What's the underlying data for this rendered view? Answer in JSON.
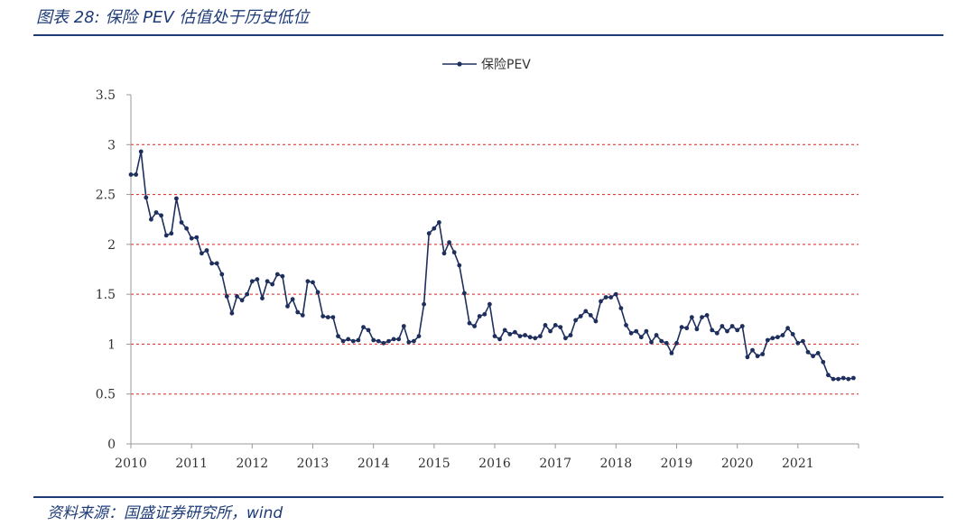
{
  "header": {
    "title": "图表 28:  保险 PEV 估值处于历史低位"
  },
  "footer": {
    "source": "资料来源：国盛证券研究所，wind"
  },
  "colors": {
    "line": "#1e2f5e",
    "grid": "#e0201f",
    "axis": "#999999",
    "accent": "#1e3c78"
  },
  "chart_data": {
    "type": "line",
    "title": "",
    "xlabel": "",
    "ylabel": "",
    "ylim": [
      0,
      3.5
    ],
    "xlim": [
      2010,
      2022
    ],
    "yticks": [
      "0",
      "0.5",
      "1",
      "1.5",
      "2",
      "2.5",
      "3",
      "3.5"
    ],
    "xticks": [
      "2010",
      "2011",
      "2012",
      "2013",
      "2014",
      "2015",
      "2016",
      "2017",
      "2018",
      "2019",
      "2020",
      "2021"
    ],
    "grid": "horizontal dashed",
    "legend": "top-center",
    "series": [
      {
        "name": "保险PEV",
        "values": [
          2.7,
          2.7,
          2.93,
          2.47,
          2.25,
          2.32,
          2.29,
          2.09,
          2.11,
          2.46,
          2.22,
          2.16,
          2.06,
          2.07,
          1.91,
          1.94,
          1.81,
          1.81,
          1.7,
          1.48,
          1.31,
          1.48,
          1.44,
          1.5,
          1.63,
          1.65,
          1.46,
          1.63,
          1.6,
          1.7,
          1.68,
          1.38,
          1.45,
          1.32,
          1.29,
          1.63,
          1.62,
          1.52,
          1.28,
          1.27,
          1.27,
          1.08,
          1.03,
          1.05,
          1.03,
          1.04,
          1.17,
          1.14,
          1.04,
          1.03,
          1.01,
          1.03,
          1.05,
          1.05,
          1.18,
          1.02,
          1.03,
          1.08,
          1.4,
          2.11,
          2.16,
          2.22,
          1.91,
          2.02,
          1.92,
          1.79,
          1.51,
          1.21,
          1.18,
          1.28,
          1.3,
          1.4,
          1.08,
          1.05,
          1.14,
          1.1,
          1.12,
          1.08,
          1.09,
          1.07,
          1.06,
          1.08,
          1.19,
          1.13,
          1.19,
          1.17,
          1.06,
          1.09,
          1.24,
          1.28,
          1.33,
          1.29,
          1.23,
          1.43,
          1.47,
          1.47,
          1.5,
          1.36,
          1.19,
          1.11,
          1.13,
          1.07,
          1.13,
          1.02,
          1.09,
          1.03,
          1.01,
          0.91,
          1.01,
          1.17,
          1.16,
          1.27,
          1.15,
          1.27,
          1.29,
          1.14,
          1.11,
          1.18,
          1.13,
          1.18,
          1.14,
          1.18,
          0.87,
          0.94,
          0.88,
          0.9,
          1.04,
          1.06,
          1.07,
          1.09,
          1.16,
          1.1,
          1.01,
          1.03,
          0.92,
          0.88,
          0.91,
          0.82,
          0.69,
          0.65,
          0.65,
          0.66,
          0.65,
          0.66
        ]
      }
    ]
  }
}
